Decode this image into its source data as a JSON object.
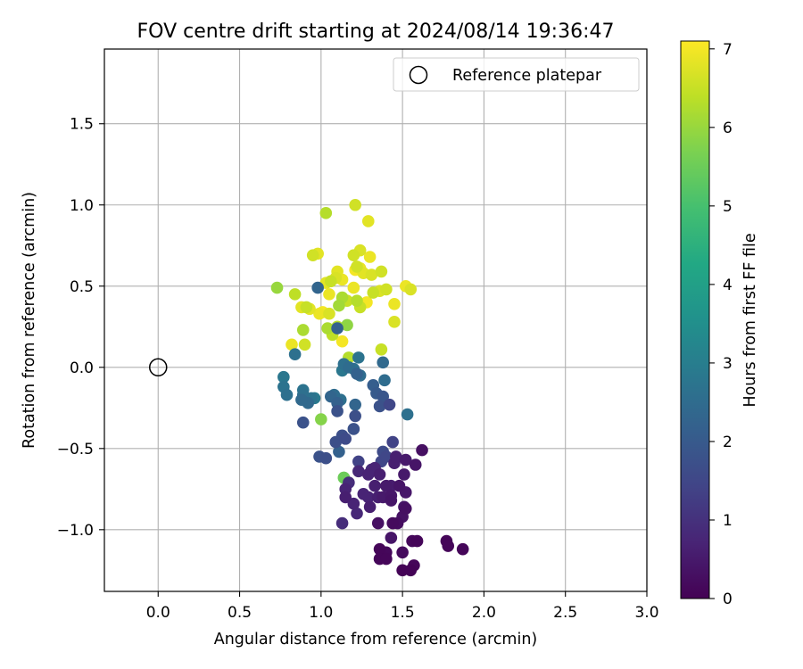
{
  "chart_data": {
    "type": "scatter",
    "title": "FOV centre drift starting at 2024/08/14 19:36:47",
    "xlabel": "Angular distance from reference (arcmin)",
    "ylabel": "Rotation from reference (arcmin)",
    "xlim": [
      -0.33,
      3.0
    ],
    "ylim": [
      -1.38,
      1.96
    ],
    "xticks": [
      0.0,
      0.5,
      1.0,
      1.5,
      2.0,
      2.5,
      3.0
    ],
    "xtick_labels": [
      "0.0",
      "0.5",
      "1.0",
      "1.5",
      "2.0",
      "2.5",
      "3.0"
    ],
    "yticks": [
      -1.0,
      -0.5,
      0.0,
      0.5,
      1.0,
      1.5
    ],
    "ytick_labels": [
      "−1.0",
      "−0.5",
      "0.0",
      "0.5",
      "1.0",
      "1.5"
    ],
    "grid": true,
    "legend": {
      "position": "top-right",
      "entries": [
        "Reference platepar"
      ]
    },
    "reference_point": {
      "x": 0.0,
      "y": 0.0,
      "label": "Reference platepar"
    },
    "colorbar": {
      "label": "Hours from first FF file",
      "colormap": "viridis",
      "range": [
        0,
        7.1
      ],
      "ticks": [
        0,
        1,
        2,
        3,
        4,
        5,
        6,
        7
      ],
      "tick_labels": [
        "0",
        "1",
        "2",
        "3",
        "4",
        "5",
        "6",
        "7"
      ]
    },
    "series": [
      {
        "points": [
          {
            "x": 1.36,
            "y": -1.12,
            "c": 0.1
          },
          {
            "x": 1.36,
            "y": -1.18,
            "c": 0.1
          },
          {
            "x": 1.4,
            "y": -1.14,
            "c": 0.15
          },
          {
            "x": 1.4,
            "y": -1.18,
            "c": 0.1
          },
          {
            "x": 1.5,
            "y": -1.14,
            "c": 0.2
          },
          {
            "x": 1.5,
            "y": -1.25,
            "c": 0.05
          },
          {
            "x": 1.55,
            "y": -1.25,
            "c": 0.05
          },
          {
            "x": 1.57,
            "y": -1.22,
            "c": 0.1
          },
          {
            "x": 1.56,
            "y": -1.07,
            "c": 0.15
          },
          {
            "x": 1.59,
            "y": -1.07,
            "c": 0.1
          },
          {
            "x": 1.77,
            "y": -1.07,
            "c": 0.1
          },
          {
            "x": 1.78,
            "y": -1.1,
            "c": 0.1
          },
          {
            "x": 1.87,
            "y": -1.12,
            "c": 0.1
          },
          {
            "x": 1.44,
            "y": -0.96,
            "c": 0.2
          },
          {
            "x": 1.47,
            "y": -0.96,
            "c": 0.25
          },
          {
            "x": 1.35,
            "y": -0.96,
            "c": 0.3
          },
          {
            "x": 1.5,
            "y": -0.92,
            "c": 0.35
          },
          {
            "x": 1.52,
            "y": -0.87,
            "c": 0.3
          },
          {
            "x": 1.51,
            "y": -0.86,
            "c": 0.4
          },
          {
            "x": 1.43,
            "y": -1.05,
            "c": 0.4
          },
          {
            "x": 1.52,
            "y": -0.77,
            "c": 0.45
          },
          {
            "x": 1.38,
            "y": -0.8,
            "c": 0.5
          },
          {
            "x": 1.43,
            "y": -0.82,
            "c": 0.4
          },
          {
            "x": 1.43,
            "y": -0.79,
            "c": 0.45
          },
          {
            "x": 1.4,
            "y": -0.73,
            "c": 0.5
          },
          {
            "x": 1.43,
            "y": -0.73,
            "c": 0.55
          },
          {
            "x": 1.48,
            "y": -0.73,
            "c": 0.4
          },
          {
            "x": 1.51,
            "y": -0.66,
            "c": 0.5
          },
          {
            "x": 1.45,
            "y": -0.59,
            "c": 0.6
          },
          {
            "x": 1.52,
            "y": -0.57,
            "c": 0.5
          },
          {
            "x": 1.46,
            "y": -0.55,
            "c": 0.6
          },
          {
            "x": 1.58,
            "y": -0.6,
            "c": 0.4
          },
          {
            "x": 1.62,
            "y": -0.51,
            "c": 0.3
          },
          {
            "x": 1.36,
            "y": -0.66,
            "c": 0.6
          },
          {
            "x": 1.33,
            "y": -0.62,
            "c": 0.7
          },
          {
            "x": 1.31,
            "y": -0.63,
            "c": 0.9
          },
          {
            "x": 1.29,
            "y": -0.66,
            "c": 0.7
          },
          {
            "x": 1.33,
            "y": -0.73,
            "c": 0.6
          },
          {
            "x": 1.35,
            "y": -0.8,
            "c": 0.6
          },
          {
            "x": 1.26,
            "y": -0.78,
            "c": 0.7
          },
          {
            "x": 1.29,
            "y": -0.8,
            "c": 0.7
          },
          {
            "x": 1.3,
            "y": -0.86,
            "c": 0.6
          },
          {
            "x": 1.22,
            "y": -0.9,
            "c": 0.8
          },
          {
            "x": 1.2,
            "y": -0.84,
            "c": 0.7
          },
          {
            "x": 1.15,
            "y": -0.8,
            "c": 0.6
          },
          {
            "x": 1.15,
            "y": -0.75,
            "c": 0.7
          },
          {
            "x": 1.13,
            "y": -0.96,
            "c": 0.9
          },
          {
            "x": 1.23,
            "y": -0.64,
            "c": 0.8
          },
          {
            "x": 1.23,
            "y": -0.58,
            "c": 1.4
          },
          {
            "x": 1.37,
            "y": -0.58,
            "c": 1.5
          },
          {
            "x": 1.38,
            "y": -0.52,
            "c": 1.6
          },
          {
            "x": 1.4,
            "y": -0.55,
            "c": 1.5
          },
          {
            "x": 1.44,
            "y": -0.46,
            "c": 1.4
          },
          {
            "x": 1.17,
            "y": -0.71,
            "c": 0.9
          },
          {
            "x": 1.09,
            "y": -0.46,
            "c": 1.7
          },
          {
            "x": 1.13,
            "y": -0.42,
            "c": 1.7
          },
          {
            "x": 1.15,
            "y": -0.44,
            "c": 1.6
          },
          {
            "x": 1.2,
            "y": -0.38,
            "c": 1.8
          },
          {
            "x": 0.99,
            "y": -0.55,
            "c": 1.8
          },
          {
            "x": 1.03,
            "y": -0.56,
            "c": 1.7
          },
          {
            "x": 1.11,
            "y": -0.52,
            "c": 2.2
          },
          {
            "x": 0.89,
            "y": -0.34,
            "c": 1.8
          },
          {
            "x": 1.21,
            "y": -0.3,
            "c": 1.7
          },
          {
            "x": 1.1,
            "y": -0.27,
            "c": 1.8
          },
          {
            "x": 1.21,
            "y": -0.23,
            "c": 2.3
          },
          {
            "x": 1.42,
            "y": -0.23,
            "c": 1.5
          },
          {
            "x": 1.36,
            "y": -0.24,
            "c": 1.8
          },
          {
            "x": 1.38,
            "y": -0.18,
            "c": 1.9
          },
          {
            "x": 1.34,
            "y": -0.16,
            "c": 2.0
          },
          {
            "x": 1.32,
            "y": -0.11,
            "c": 2.1
          },
          {
            "x": 1.53,
            "y": -0.29,
            "c": 2.6
          },
          {
            "x": 1.39,
            "y": -0.08,
            "c": 2.5
          },
          {
            "x": 1.38,
            "y": 0.03,
            "c": 2.4
          },
          {
            "x": 1.24,
            "y": -0.05,
            "c": 2.5
          },
          {
            "x": 1.22,
            "y": -0.04,
            "c": 2.2
          },
          {
            "x": 1.2,
            "y": -0.01,
            "c": 2.6
          },
          {
            "x": 1.23,
            "y": 0.06,
            "c": 2.7
          },
          {
            "x": 1.17,
            "y": 0.0,
            "c": 2.5
          },
          {
            "x": 1.13,
            "y": -0.02,
            "c": 2.8
          },
          {
            "x": 1.14,
            "y": 0.02,
            "c": 2.6
          },
          {
            "x": 1.08,
            "y": -0.17,
            "c": 2.5
          },
          {
            "x": 1.06,
            "y": -0.18,
            "c": 2.3
          },
          {
            "x": 1.1,
            "y": -0.22,
            "c": 2.2
          },
          {
            "x": 1.12,
            "y": -0.2,
            "c": 2.6
          },
          {
            "x": 0.96,
            "y": -0.19,
            "c": 2.9
          },
          {
            "x": 0.94,
            "y": -0.19,
            "c": 2.7
          },
          {
            "x": 0.92,
            "y": -0.22,
            "c": 2.4
          },
          {
            "x": 0.89,
            "y": -0.17,
            "c": 2.6
          },
          {
            "x": 0.88,
            "y": -0.2,
            "c": 2.4
          },
          {
            "x": 0.89,
            "y": -0.14,
            "c": 2.7
          },
          {
            "x": 0.79,
            "y": -0.17,
            "c": 2.6
          },
          {
            "x": 0.77,
            "y": -0.12,
            "c": 2.7
          },
          {
            "x": 0.77,
            "y": -0.06,
            "c": 2.8
          },
          {
            "x": 0.84,
            "y": 0.08,
            "c": 2.6
          },
          {
            "x": 0.98,
            "y": 0.49,
            "c": 2.3
          },
          {
            "x": 1.1,
            "y": 0.24,
            "c": 2.2
          },
          {
            "x": 1.0,
            "y": -0.32,
            "c": 5.8
          },
          {
            "x": 1.14,
            "y": -0.68,
            "c": 5.5
          },
          {
            "x": 1.14,
            "y": -0.68,
            "c": 5.7
          },
          {
            "x": 1.17,
            "y": 0.06,
            "c": 6.3
          },
          {
            "x": 1.16,
            "y": 0.26,
            "c": 5.9
          },
          {
            "x": 1.1,
            "y": 0.25,
            "c": 6.3
          },
          {
            "x": 1.04,
            "y": 0.24,
            "c": 6.2
          },
          {
            "x": 1.07,
            "y": 0.2,
            "c": 6.4
          },
          {
            "x": 1.13,
            "y": 0.16,
            "c": 7.0
          },
          {
            "x": 0.89,
            "y": 0.23,
            "c": 6.2
          },
          {
            "x": 0.9,
            "y": 0.14,
            "c": 6.6
          },
          {
            "x": 0.82,
            "y": 0.14,
            "c": 6.9
          },
          {
            "x": 1.37,
            "y": 0.11,
            "c": 6.5
          },
          {
            "x": 1.45,
            "y": 0.28,
            "c": 6.7
          },
          {
            "x": 1.45,
            "y": 0.39,
            "c": 6.9
          },
          {
            "x": 0.73,
            "y": 0.49,
            "c": 6.0
          },
          {
            "x": 0.84,
            "y": 0.45,
            "c": 6.4
          },
          {
            "x": 0.88,
            "y": 0.37,
            "c": 6.8
          },
          {
            "x": 0.91,
            "y": 0.37,
            "c": 6.5
          },
          {
            "x": 0.93,
            "y": 0.36,
            "c": 6.8
          },
          {
            "x": 1.01,
            "y": 0.34,
            "c": 7.0
          },
          {
            "x": 1.05,
            "y": 0.33,
            "c": 6.7
          },
          {
            "x": 0.99,
            "y": 0.33,
            "c": 6.9
          },
          {
            "x": 1.11,
            "y": 0.38,
            "c": 6.1
          },
          {
            "x": 1.13,
            "y": 0.43,
            "c": 6.2
          },
          {
            "x": 1.16,
            "y": 0.41,
            "c": 6.5
          },
          {
            "x": 1.2,
            "y": 0.49,
            "c": 6.9
          },
          {
            "x": 1.22,
            "y": 0.41,
            "c": 6.3
          },
          {
            "x": 1.24,
            "y": 0.37,
            "c": 6.5
          },
          {
            "x": 1.28,
            "y": 0.4,
            "c": 7.0
          },
          {
            "x": 1.32,
            "y": 0.46,
            "c": 6.5
          },
          {
            "x": 1.36,
            "y": 0.47,
            "c": 6.7
          },
          {
            "x": 1.4,
            "y": 0.48,
            "c": 6.6
          },
          {
            "x": 1.52,
            "y": 0.5,
            "c": 6.9
          },
          {
            "x": 1.55,
            "y": 0.48,
            "c": 6.7
          },
          {
            "x": 1.05,
            "y": 0.45,
            "c": 6.9
          },
          {
            "x": 1.03,
            "y": 0.52,
            "c": 6.8
          },
          {
            "x": 1.06,
            "y": 0.53,
            "c": 6.5
          },
          {
            "x": 1.09,
            "y": 0.55,
            "c": 6.7
          },
          {
            "x": 1.13,
            "y": 0.54,
            "c": 6.9
          },
          {
            "x": 1.1,
            "y": 0.59,
            "c": 6.8
          },
          {
            "x": 1.21,
            "y": 0.6,
            "c": 7.0
          },
          {
            "x": 1.24,
            "y": 0.61,
            "c": 6.9
          },
          {
            "x": 1.22,
            "y": 0.62,
            "c": 6.6
          },
          {
            "x": 1.26,
            "y": 0.58,
            "c": 6.8
          },
          {
            "x": 1.31,
            "y": 0.57,
            "c": 6.7
          },
          {
            "x": 1.37,
            "y": 0.59,
            "c": 6.6
          },
          {
            "x": 0.95,
            "y": 0.69,
            "c": 6.6
          },
          {
            "x": 0.98,
            "y": 0.7,
            "c": 6.8
          },
          {
            "x": 1.2,
            "y": 0.69,
            "c": 6.6
          },
          {
            "x": 1.24,
            "y": 0.72,
            "c": 6.7
          },
          {
            "x": 1.3,
            "y": 0.68,
            "c": 6.9
          },
          {
            "x": 1.03,
            "y": 0.95,
            "c": 6.3
          },
          {
            "x": 1.21,
            "y": 1.0,
            "c": 6.6
          },
          {
            "x": 1.29,
            "y": 0.9,
            "c": 6.8
          }
        ]
      }
    ]
  }
}
